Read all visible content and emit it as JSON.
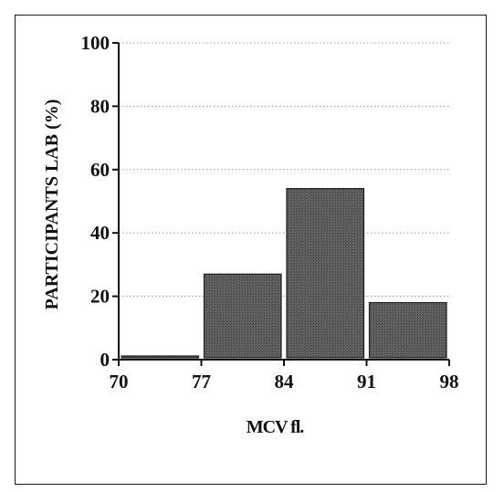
{
  "chart_data": {
    "type": "bar",
    "title": "",
    "xlabel": "MCV fl.",
    "ylabel": "PARTICIPANTS LAB  (%)",
    "bin_edges": [
      70,
      77,
      84,
      91,
      98
    ],
    "values": [
      1,
      27,
      54,
      18
    ],
    "ylim": [
      0,
      100
    ],
    "xlim": [
      70,
      98
    ],
    "yticks": [
      0,
      20,
      40,
      60,
      80,
      100
    ],
    "xticks": [
      70,
      77,
      84,
      91,
      98
    ],
    "grid": "horizontal dotted",
    "legend": "none",
    "colors": {
      "bar": "#5b5b5b",
      "bar_border": "#1e1e1e",
      "axis": "#111111",
      "grid": "#9a9a9a"
    }
  }
}
